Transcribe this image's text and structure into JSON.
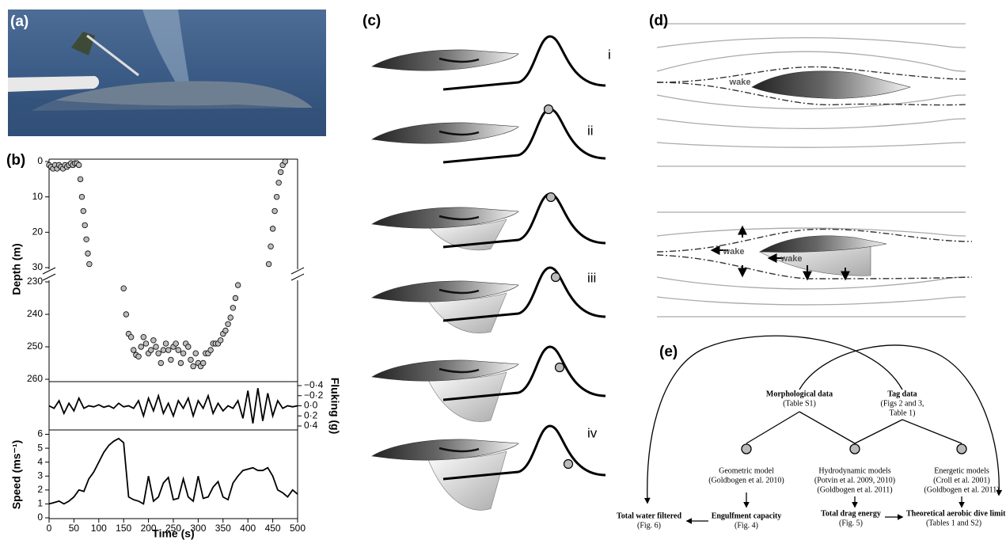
{
  "panels": [
    "(a)",
    "(b)",
    "(c)",
    "(d)",
    "(e)"
  ],
  "chart_data": [
    {
      "type": "scatter",
      "ylabel": "Depth (m)",
      "inverted": true,
      "yaxis_side": "left",
      "xlim": [
        0,
        500
      ],
      "ylim": [
        0,
        30
      ],
      "yticks": [
        0,
        10,
        20,
        30
      ],
      "x": [
        0,
        4,
        8,
        12,
        16,
        20,
        24,
        28,
        32,
        36,
        40,
        44,
        48,
        52,
        56,
        60,
        63,
        66,
        69,
        72,
        75,
        78,
        81,
        442,
        446,
        450,
        454,
        458,
        462,
        466,
        470,
        475
      ],
      "values": [
        1,
        1.5,
        2,
        1,
        2,
        1,
        1.5,
        2,
        1,
        1.5,
        1,
        0.5,
        1,
        0.5,
        0.5,
        1,
        5,
        10,
        14,
        18,
        22,
        26,
        29,
        29,
        24,
        19,
        14,
        10,
        6,
        3,
        1,
        0
      ],
      "color": "#bdbdbd"
    },
    {
      "type": "scatter",
      "inverted": true,
      "yaxis_side": "left",
      "xlim": [
        0,
        500
      ],
      "ylim": [
        230,
        260
      ],
      "yticks": [
        230,
        240,
        250,
        260
      ],
      "x": [
        150,
        155,
        160,
        165,
        170,
        175,
        180,
        185,
        190,
        195,
        200,
        205,
        210,
        215,
        220,
        225,
        230,
        235,
        240,
        245,
        250,
        255,
        260,
        265,
        270,
        275,
        280,
        285,
        290,
        295,
        300,
        305,
        310,
        315,
        320,
        325,
        330,
        335,
        340,
        345,
        350,
        355,
        360,
        365,
        370,
        375,
        380
      ],
      "values": [
        232,
        240,
        246,
        247,
        251,
        252.5,
        253,
        250,
        247,
        249,
        252,
        251,
        248,
        250,
        252,
        255,
        251,
        249,
        251,
        254,
        250,
        249,
        251,
        255,
        252,
        249,
        250,
        254,
        256,
        252,
        255,
        256,
        255,
        252,
        252,
        251,
        249,
        249,
        249,
        248,
        246,
        245,
        243,
        241,
        238,
        235,
        231
      ],
      "color": "#bdbdbd"
    },
    {
      "type": "line",
      "ylabel": "Fluking (g)",
      "inverted": true,
      "yaxis_side": "right",
      "xlim": [
        0,
        500
      ],
      "ylim": [
        -0.4,
        0.4
      ],
      "yticks": [
        {
          "value": -0.4,
          "label": "−0·4"
        },
        {
          "value": -0.2,
          "label": "−0·2"
        },
        {
          "value": 0,
          "label": "0·0"
        },
        {
          "value": 0.2,
          "label": "0·2"
        },
        {
          "value": 0.4,
          "label": "0·4"
        }
      ],
      "x": [
        0,
        10,
        20,
        30,
        40,
        50,
        60,
        70,
        80,
        90,
        100,
        110,
        120,
        130,
        140,
        150,
        160,
        170,
        180,
        190,
        200,
        210,
        220,
        230,
        240,
        250,
        260,
        270,
        280,
        290,
        300,
        310,
        320,
        330,
        340,
        350,
        360,
        370,
        380,
        390,
        400,
        410,
        420,
        430,
        440,
        450,
        460,
        470,
        480,
        490,
        500
      ],
      "values": [
        0,
        0.05,
        -0.1,
        0.15,
        -0.05,
        0.1,
        -0.15,
        0.05,
        0,
        0.02,
        -0.02,
        0.03,
        0,
        0.05,
        -0.05,
        0.02,
        0,
        0.05,
        -0.1,
        0.2,
        -0.15,
        0.1,
        -0.2,
        0.15,
        -0.05,
        0.2,
        -0.1,
        0.05,
        -0.15,
        0.2,
        -0.1,
        0.05,
        -0.2,
        0.15,
        -0.05,
        0.1,
        0,
        0.05,
        -0.1,
        0.25,
        -0.3,
        0.35,
        -0.35,
        0.3,
        -0.25,
        0.2,
        -0.1,
        0.05,
        0,
        0.02,
        0
      ],
      "color": "#000000"
    },
    {
      "type": "line",
      "ylabel": "Speed (ms⁻¹)",
      "xlabel": "Time (s)",
      "yaxis_side": "left",
      "xlim": [
        0,
        500
      ],
      "ylim": [
        0,
        6.2
      ],
      "yticks": [
        0,
        1,
        2,
        3,
        4,
        5,
        6
      ],
      "xticks": [
        0,
        50,
        100,
        150,
        200,
        250,
        300,
        350,
        400,
        450,
        500
      ],
      "x": [
        0,
        10,
        20,
        30,
        40,
        50,
        60,
        70,
        80,
        90,
        100,
        110,
        120,
        130,
        140,
        150,
        160,
        170,
        180,
        190,
        200,
        210,
        220,
        230,
        240,
        250,
        260,
        270,
        280,
        290,
        300,
        310,
        320,
        330,
        340,
        350,
        360,
        370,
        380,
        390,
        400,
        410,
        420,
        430,
        440,
        450,
        460,
        470,
        480,
        490,
        500
      ],
      "values": [
        1.0,
        1.1,
        1.2,
        1.0,
        1.2,
        1.5,
        2.0,
        1.9,
        2.8,
        3.3,
        4.0,
        4.7,
        5.2,
        5.5,
        5.7,
        5.4,
        1.5,
        1.3,
        1.2,
        1.0,
        3.0,
        1.2,
        1.5,
        2.5,
        2.9,
        1.3,
        1.4,
        2.8,
        1.5,
        1.2,
        3.0,
        1.4,
        1.5,
        2.2,
        2.6,
        1.5,
        1.3,
        2.5,
        3.0,
        3.4,
        3.5,
        3.6,
        3.4,
        3.4,
        3.6,
        3.0,
        2.0,
        1.8,
        1.5,
        2.0,
        1.7
      ],
      "color": "#000000"
    }
  ],
  "stages": [
    "i",
    "ii",
    "iii",
    "iv"
  ],
  "wake_labels": [
    "wake",
    "wake",
    "wake"
  ],
  "diagram": {
    "inputs": [
      {
        "title": "Morphological data",
        "notes": [
          "(Table S1)"
        ]
      },
      {
        "title": "Tag data",
        "notes": [
          "(Figs 2 and 3,",
          "Table 1)"
        ]
      }
    ],
    "models": [
      {
        "title": "Geometric model",
        "notes": [
          "(Goldbogen et al. 2010)"
        ]
      },
      {
        "title": "Hydrodynamic models",
        "notes": [
          "(Potvin et al. 2009, 2010)",
          "(Goldbogen et al. 2011)"
        ]
      },
      {
        "title": "Energetic models",
        "notes": [
          "(Croll et al. 2001)",
          "(Goldbogen et al. 2011)"
        ]
      }
    ],
    "outputs": [
      {
        "title": "Total water filtered",
        "notes": [
          "(Fig. 6)"
        ]
      },
      {
        "title": "Engulfment capacity",
        "notes": [
          "(Fig. 4)"
        ]
      },
      {
        "title": "Total drag energy",
        "notes": [
          "(Fig. 5)"
        ]
      },
      {
        "title": "Theoretical aerobic dive limit",
        "notes": [
          "(Tables 1 and S2)"
        ]
      }
    ]
  }
}
